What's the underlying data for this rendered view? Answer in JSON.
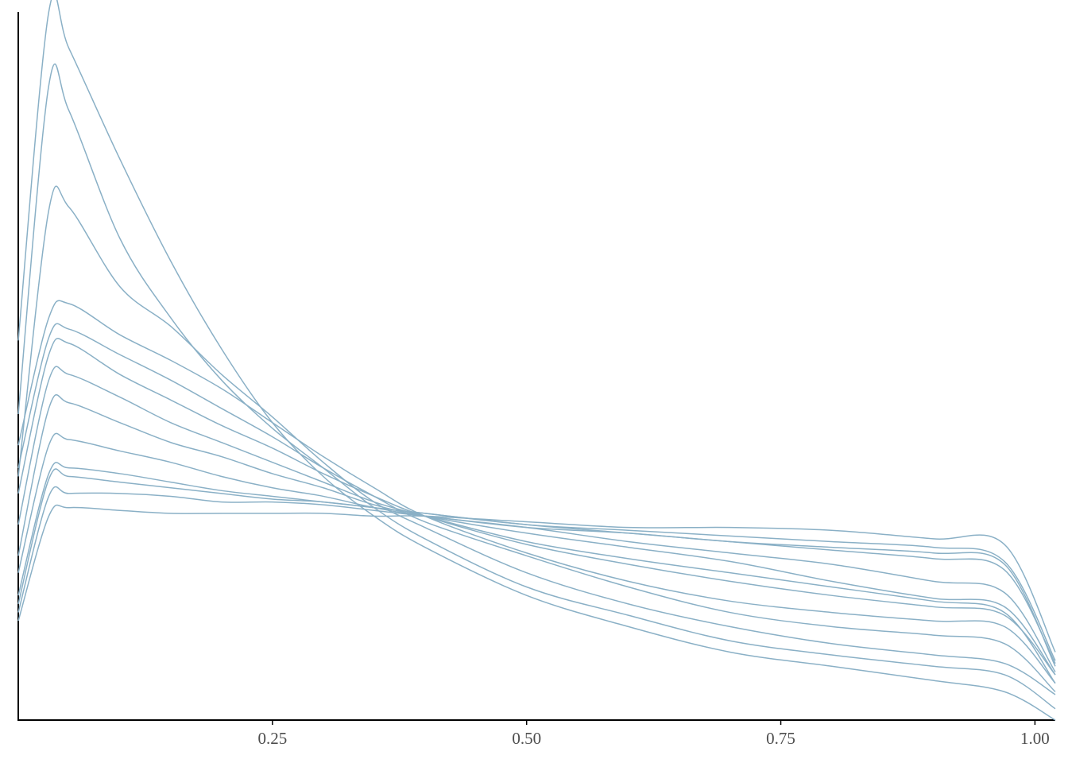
{
  "chart_data": {
    "type": "line",
    "x": [
      0,
      0.03,
      0.05,
      0.1,
      0.15,
      0.2,
      0.25,
      0.3,
      0.35,
      0.4,
      0.5,
      0.6,
      0.7,
      0.8,
      0.9,
      0.97,
      1.02
    ],
    "color": "#8ab0c6",
    "xlim": [
      0,
      1.02
    ],
    "ylim": [
      0,
      2.5
    ],
    "xticks": [
      0.25,
      {
        "value": 0.5,
        "label": "0.50"
      },
      0.75,
      {
        "value": 1,
        "label": "1.00"
      }
    ],
    "series": [
      {
        "values": [
          1.34,
          2.5,
          2.37,
          1.98,
          1.62,
          1.31,
          1.05,
          0.86,
          0.72,
          0.61,
          0.44,
          0.33,
          0.24,
          0.19,
          0.14,
          0.1,
          0
        ]
      },
      {
        "values": [
          1.08,
          2.24,
          2.15,
          1.7,
          1.42,
          1.2,
          1.03,
          0.89,
          0.75,
          0.64,
          0.47,
          0.37,
          0.28,
          0.23,
          0.19,
          0.16,
          0.04
        ]
      },
      {
        "values": [
          0.86,
          1.8,
          1.81,
          1.53,
          1.39,
          1.22,
          1.07,
          0.91,
          0.77,
          0.68,
          0.52,
          0.41,
          0.33,
          0.27,
          0.23,
          0.2,
          0.09
        ]
      },
      {
        "values": [
          0.97,
          1.42,
          1.47,
          1.36,
          1.27,
          1.17,
          1.05,
          0.93,
          0.82,
          0.72,
          0.59,
          0.49,
          0.42,
          0.38,
          0.35,
          0.33,
          0.13
        ]
      },
      {
        "values": [
          0.89,
          1.35,
          1.38,
          1.29,
          1.2,
          1.1,
          1.0,
          0.89,
          0.79,
          0.7,
          0.58,
          0.47,
          0.38,
          0.33,
          0.3,
          0.27,
          0.1
        ]
      },
      {
        "values": [
          0.8,
          1.29,
          1.33,
          1.22,
          1.13,
          1.04,
          0.96,
          0.87,
          0.79,
          0.72,
          0.62,
          0.55,
          0.49,
          0.44,
          0.4,
          0.37,
          0.16
        ]
      },
      {
        "values": [
          0.69,
          1.2,
          1.22,
          1.14,
          1.05,
          0.98,
          0.91,
          0.84,
          0.77,
          0.72,
          0.63,
          0.57,
          0.52,
          0.47,
          0.42,
          0.38,
          0.13
        ]
      },
      {
        "values": [
          0.58,
          1.1,
          1.12,
          1.05,
          0.98,
          0.93,
          0.87,
          0.82,
          0.76,
          0.72,
          0.66,
          0.61,
          0.56,
          0.49,
          0.43,
          0.4,
          0.16
        ]
      },
      {
        "values": [
          0.52,
          0.97,
          0.99,
          0.95,
          0.91,
          0.86,
          0.82,
          0.79,
          0.75,
          0.72,
          0.68,
          0.63,
          0.59,
          0.55,
          0.49,
          0.45,
          0.17
        ]
      },
      {
        "values": [
          0.44,
          0.87,
          0.89,
          0.87,
          0.84,
          0.81,
          0.79,
          0.77,
          0.75,
          0.73,
          0.69,
          0.66,
          0.63,
          0.6,
          0.57,
          0.53,
          0.2
        ]
      },
      {
        "values": [
          0.41,
          0.85,
          0.86,
          0.84,
          0.82,
          0.8,
          0.78,
          0.77,
          0.75,
          0.73,
          0.69,
          0.67,
          0.65,
          0.63,
          0.61,
          0.56,
          0.21
        ]
      },
      {
        "values": [
          0.38,
          0.79,
          0.8,
          0.8,
          0.79,
          0.77,
          0.77,
          0.76,
          0.74,
          0.72,
          0.68,
          0.66,
          0.63,
          0.61,
          0.59,
          0.55,
          0.19
        ]
      },
      {
        "values": [
          0.35,
          0.72,
          0.75,
          0.74,
          0.73,
          0.73,
          0.73,
          0.73,
          0.72,
          0.72,
          0.7,
          0.68,
          0.68,
          0.67,
          0.64,
          0.62,
          0.24
        ]
      }
    ]
  }
}
